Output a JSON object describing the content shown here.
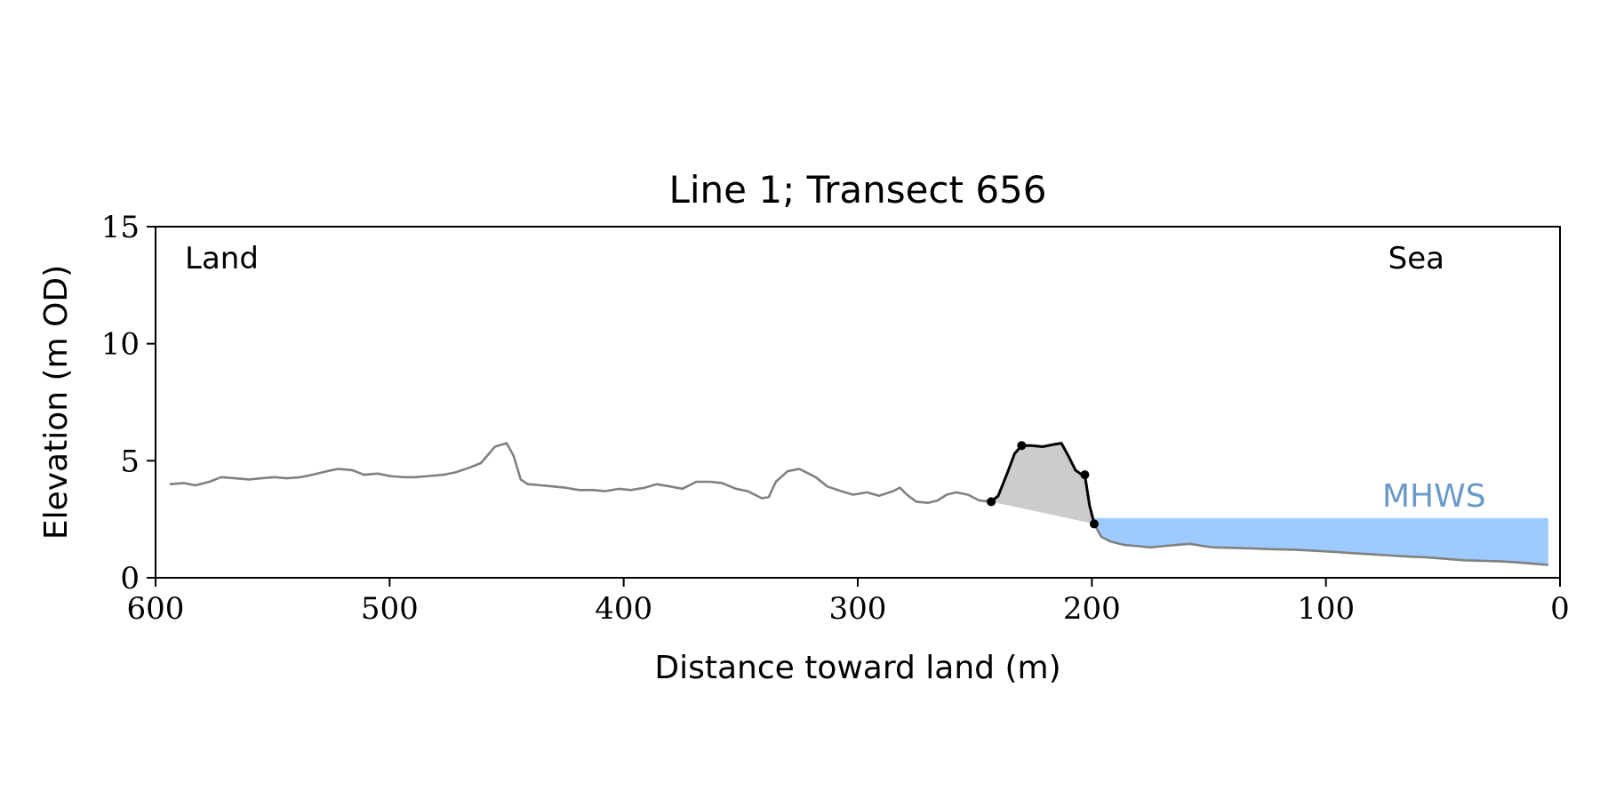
{
  "chart_data": {
    "type": "line",
    "title": "Line 1; Transect 656",
    "xlabel": "Distance toward land (m)",
    "ylabel": "Elevation (m OD)",
    "xlim": [
      600,
      0
    ],
    "ylim": [
      0,
      15
    ],
    "x_ticks": [
      600,
      500,
      400,
      300,
      200,
      100,
      0
    ],
    "y_ticks": [
      0,
      5,
      10,
      15
    ],
    "grid": false,
    "annotations": {
      "land": "Land",
      "sea": "Sea",
      "mhws": "MHWS"
    },
    "mhws_level": 2.55,
    "colors": {
      "profile": "#808080",
      "dune": "#000000",
      "dune_fill": "#cccccc",
      "water_fill": "#9ecbff",
      "mhws_label": "#6a9ac9",
      "axis": "#000000"
    },
    "series": [
      {
        "role": "profile",
        "x": [
          594,
          588,
          583,
          577,
          572,
          566,
          560,
          555,
          549,
          544,
          538,
          533,
          527,
          522,
          516,
          511,
          505,
          500,
          494,
          489,
          483,
          477,
          472,
          466,
          461,
          455,
          450,
          447,
          444,
          441,
          435,
          430,
          425,
          419,
          413,
          408,
          402,
          397,
          391,
          386,
          380,
          375,
          369,
          363,
          358,
          352,
          347,
          341,
          338,
          335,
          330,
          325,
          318,
          313,
          307,
          302,
          296,
          291,
          285,
          282,
          279,
          275,
          270,
          266,
          262,
          258,
          253,
          248,
          243
        ],
        "y": [
          4.0,
          4.05,
          3.95,
          4.1,
          4.3,
          4.25,
          4.2,
          4.25,
          4.3,
          4.25,
          4.3,
          4.4,
          4.55,
          4.65,
          4.6,
          4.4,
          4.45,
          4.35,
          4.3,
          4.3,
          4.35,
          4.4,
          4.5,
          4.7,
          4.9,
          5.6,
          5.75,
          5.2,
          4.2,
          4.0,
          3.95,
          3.9,
          3.85,
          3.75,
          3.75,
          3.7,
          3.8,
          3.75,
          3.85,
          4.0,
          3.9,
          3.8,
          4.1,
          4.1,
          4.05,
          3.8,
          3.7,
          3.4,
          3.45,
          4.1,
          4.55,
          4.65,
          4.3,
          3.9,
          3.7,
          3.55,
          3.65,
          3.5,
          3.7,
          3.85,
          3.55,
          3.25,
          3.2,
          3.3,
          3.55,
          3.65,
          3.55,
          3.3,
          3.25
        ]
      },
      {
        "role": "dune",
        "x": [
          243,
          240,
          236,
          233,
          230,
          226,
          221,
          216,
          213,
          210,
          207,
          205,
          203,
          201,
          199
        ],
        "y": [
          3.25,
          3.5,
          4.5,
          5.3,
          5.65,
          5.65,
          5.6,
          5.7,
          5.75,
          5.2,
          4.6,
          4.45,
          4.4,
          3.1,
          2.3
        ]
      },
      {
        "role": "profile",
        "x": [
          199,
          196,
          192,
          186,
          180,
          175,
          170,
          164,
          158,
          152,
          148,
          140,
          131,
          122,
          113,
          104,
          96,
          88,
          80,
          72,
          64,
          58,
          50,
          41,
          32,
          25,
          17,
          9,
          5
        ],
        "y": [
          2.3,
          1.75,
          1.55,
          1.4,
          1.35,
          1.3,
          1.35,
          1.4,
          1.45,
          1.35,
          1.3,
          1.28,
          1.25,
          1.22,
          1.2,
          1.15,
          1.1,
          1.05,
          1.0,
          0.95,
          0.9,
          0.88,
          0.82,
          0.75,
          0.72,
          0.7,
          0.65,
          0.58,
          0.55
        ]
      }
    ],
    "dune_markers": {
      "x": [
        243,
        230,
        203,
        199
      ],
      "y": [
        3.25,
        5.65,
        4.4,
        2.3
      ]
    },
    "dune_base": {
      "x": [
        243,
        199
      ],
      "y": [
        3.25,
        2.3
      ]
    }
  }
}
